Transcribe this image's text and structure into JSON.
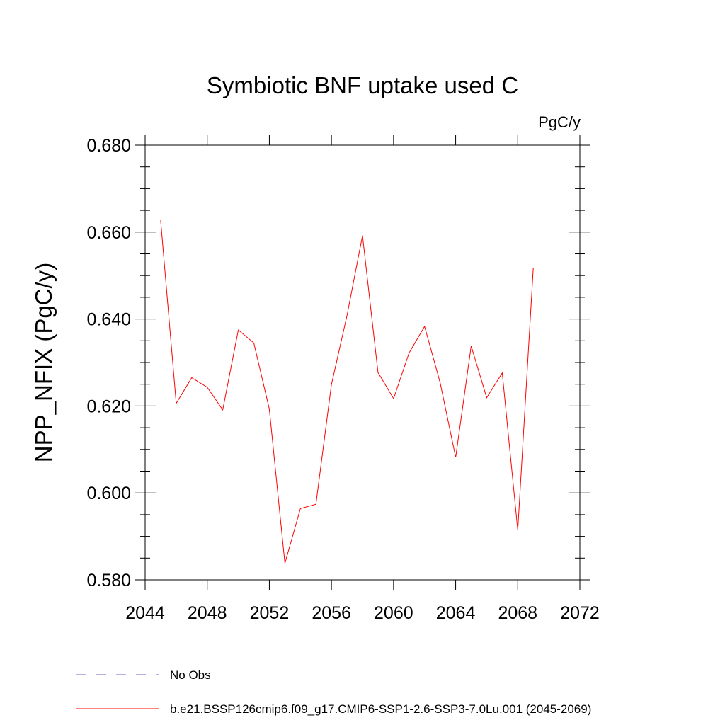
{
  "chart_data": {
    "type": "line",
    "title": "Symbiotic BNF uptake used C",
    "units_label": "PgC/y",
    "ylabel": "NPP_NFIX  (PgC/y)",
    "xlabel": "",
    "xlim": [
      2044,
      2072
    ],
    "ylim": [
      0.58,
      0.68
    ],
    "x_ticks": [
      2044,
      2048,
      2052,
      2056,
      2060,
      2064,
      2068,
      2072
    ],
    "x_tick_labels": [
      "2044",
      "2048",
      "2052",
      "2056",
      "2060",
      "2064",
      "2068",
      "2072"
    ],
    "y_ticks": [
      0.58,
      0.6,
      0.62,
      0.64,
      0.66,
      0.68
    ],
    "y_tick_labels": [
      "0.580",
      "0.600",
      "0.620",
      "0.640",
      "0.660",
      "0.680"
    ],
    "grid": false,
    "legend_placement": "bottom",
    "series": [
      {
        "name": "b.e21.BSSP126cmip6.f09_g17.CMIP6-SSP1-2.6-SSP3-7.0Lu.001 (2045-2069)",
        "color": "#ff0000",
        "style": "solid",
        "x": [
          2045,
          2046,
          2047,
          2048,
          2049,
          2050,
          2051,
          2052,
          2053,
          2054,
          2055,
          2056,
          2057,
          2058,
          2059,
          2060,
          2061,
          2062,
          2063,
          2064,
          2065,
          2066,
          2067,
          2068,
          2069
        ],
        "values": [
          0.6627,
          0.6206,
          0.6265,
          0.6243,
          0.6191,
          0.6375,
          0.6345,
          0.6193,
          0.5838,
          0.5964,
          0.5974,
          0.6249,
          0.6408,
          0.6592,
          0.6277,
          0.6217,
          0.6322,
          0.6383,
          0.6254,
          0.6082,
          0.6338,
          0.6219,
          0.6276,
          0.5914,
          0.6517
        ]
      },
      {
        "name": "No Obs",
        "color": "#6b63c6",
        "style": "dashed",
        "x": [],
        "values": []
      }
    ]
  }
}
